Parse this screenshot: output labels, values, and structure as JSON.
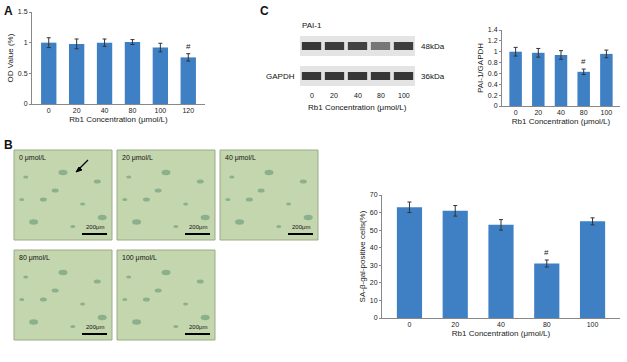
{
  "chart_data": [
    {
      "type": "bar",
      "annotations": [
        {
          "text": "A"
        },
        {
          "text": "#",
          "category": "120"
        }
      ],
      "xlabel": "Rb1 Concentration (μmol/L)",
      "ylabel": "OD Value (%)",
      "categories": [
        "0",
        "20",
        "40",
        "80",
        "100",
        "120"
      ],
      "values": [
        1.0,
        0.98,
        1.0,
        1.01,
        0.92,
        0.76
      ],
      "errors": [
        0.08,
        0.08,
        0.06,
        0.04,
        0.07,
        0.06
      ],
      "color": "#3f7fc4",
      "ylim": [
        0,
        1.5
      ],
      "yticks": [
        0,
        0.5,
        1,
        1.5
      ],
      "grid": false
    },
    {
      "type": "bar",
      "annotations": [
        {
          "text": "#",
          "category": "80"
        }
      ],
      "xlabel": "Rb1 Concentration (μmol/L)",
      "ylabel": "SA-β-gal-positive cells(%)",
      "categories": [
        "0",
        "20",
        "40",
        "80",
        "100"
      ],
      "values": [
        63,
        61,
        53,
        31,
        55
      ],
      "errors": [
        3,
        3,
        3,
        2,
        2
      ],
      "color": "#3f7fc4",
      "ylim": [
        0,
        70
      ],
      "yticks": [
        0,
        10,
        20,
        30,
        40,
        50,
        60,
        70
      ],
      "grid": false
    },
    {
      "type": "bar",
      "annotations": [
        {
          "text": "#",
          "category": "80"
        }
      ],
      "xlabel": "Rb1 Concentration (μmol/L)",
      "ylabel": "PAI-1/GAPDH",
      "categories": [
        "0",
        "20",
        "40",
        "80",
        "100"
      ],
      "values": [
        1.0,
        0.98,
        0.94,
        0.63,
        0.96
      ],
      "errors": [
        0.08,
        0.08,
        0.08,
        0.05,
        0.07
      ],
      "color": "#3f7fc4",
      "ylim": [
        0,
        1.4
      ],
      "yticks": [
        0,
        0.2,
        0.4,
        0.6,
        0.8,
        1,
        1.2,
        1.4
      ],
      "grid": false
    }
  ],
  "micrographs": {
    "panel": "B",
    "labels": [
      "0 μmol/L",
      "20 μmol/L",
      "40 μmol/L",
      "80 μmol/L",
      "100 μmol/L"
    ],
    "scale_bar": "200μm"
  },
  "blot": {
    "panel": "C",
    "bands": [
      {
        "name": "PAI-1",
        "size": "48kDa"
      },
      {
        "name": "GAPDH",
        "size": "36kDa"
      }
    ],
    "lanes": [
      "0",
      "20",
      "40",
      "80",
      "100"
    ],
    "xlabel": "Rb1 Concentration (μmol/L)"
  }
}
